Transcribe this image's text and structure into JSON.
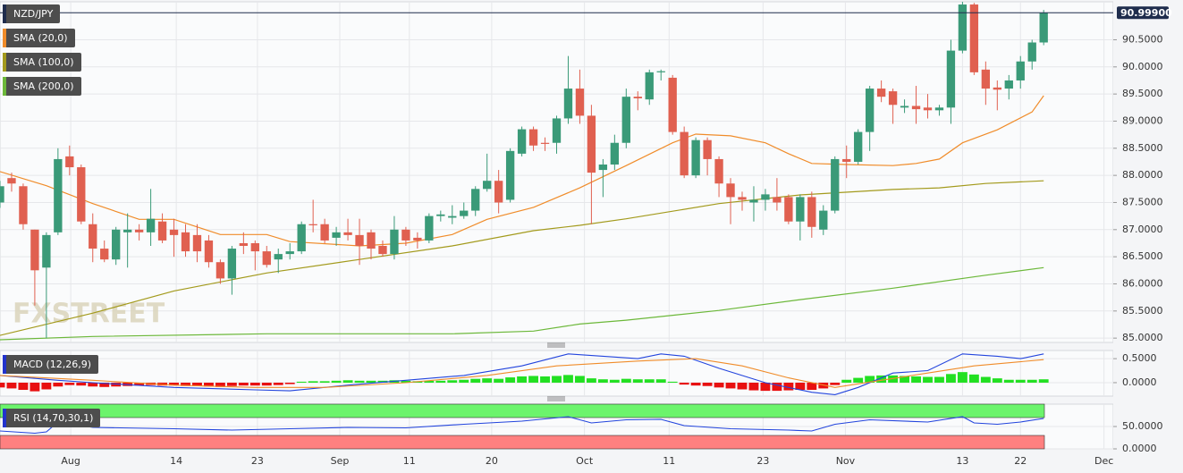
{
  "chart_data": [
    {
      "type": "candlestick",
      "title": "NZD/JPY",
      "title_color": "#1f2d4d",
      "up_color": "#3a9a78",
      "down_color": "#e06050",
      "open": [
        87.5,
        87.95,
        87.8,
        87.0,
        86.3,
        86.95,
        88.35,
        88.15,
        87.1,
        86.65,
        86.45,
        86.95,
        87.0,
        86.95,
        87.15,
        87.0,
        86.95,
        86.9,
        86.8,
        86.4,
        86.1,
        86.75,
        86.75,
        86.6,
        86.45,
        86.55,
        86.6,
        87.1,
        87.1,
        86.85,
        86.95,
        86.9,
        86.95,
        86.7,
        86.55,
        87.0,
        86.85,
        86.8,
        87.25,
        87.22,
        87.25,
        87.35,
        87.75,
        87.9,
        87.55,
        88.4,
        88.85,
        88.6,
        88.6,
        89.05,
        89.6,
        89.1,
        88.1,
        88.2,
        88.6,
        89.45,
        89.4,
        89.9,
        89.8,
        88.8,
        88.0,
        88.65,
        88.3,
        87.85,
        87.6,
        87.5,
        87.55,
        87.6,
        87.6,
        87.15,
        87.6,
        87.0,
        87.35,
        88.3,
        88.25,
        88.8,
        89.6,
        89.55,
        89.25,
        89.28,
        89.25,
        89.2,
        89.25,
        90.3,
        91.15,
        89.95,
        89.62,
        89.6,
        89.75,
        90.1,
        90.45
      ],
      "high": [
        87.9,
        88.05,
        87.85,
        87.0,
        86.95,
        88.5,
        88.55,
        88.2,
        87.3,
        86.8,
        87.05,
        87.3,
        87.1,
        87.75,
        87.3,
        87.2,
        87.1,
        87.1,
        86.9,
        86.45,
        86.7,
        86.95,
        86.8,
        86.7,
        86.65,
        86.75,
        87.15,
        87.55,
        87.2,
        87.05,
        87.2,
        87.2,
        87.0,
        86.8,
        87.25,
        87.05,
        86.95,
        87.3,
        87.35,
        87.45,
        87.5,
        87.8,
        88.4,
        88.1,
        88.5,
        88.9,
        88.9,
        88.7,
        89.1,
        90.2,
        89.95,
        89.3,
        88.3,
        88.75,
        89.6,
        89.55,
        89.95,
        89.95,
        89.85,
        88.9,
        88.7,
        88.7,
        88.35,
        87.95,
        87.7,
        87.8,
        87.75,
        87.95,
        87.65,
        87.65,
        87.7,
        87.45,
        88.35,
        88.55,
        88.85,
        89.65,
        89.75,
        89.6,
        89.4,
        89.65,
        89.5,
        89.3,
        90.5,
        91.2,
        91.18,
        90.1,
        89.75,
        89.85,
        90.2,
        90.5,
        91.05
      ],
      "low": [
        87.4,
        87.7,
        87.0,
        85.6,
        85.0,
        86.9,
        88.0,
        87.1,
        86.4,
        86.4,
        86.35,
        86.3,
        86.8,
        86.7,
        86.75,
        86.5,
        86.5,
        86.4,
        86.3,
        86.0,
        85.8,
        86.55,
        86.25,
        86.3,
        86.2,
        86.45,
        86.55,
        86.95,
        86.75,
        86.7,
        86.8,
        86.35,
        86.45,
        86.5,
        86.45,
        86.7,
        86.65,
        86.75,
        87.15,
        87.1,
        87.2,
        87.25,
        87.7,
        87.3,
        87.5,
        88.35,
        88.45,
        88.45,
        88.4,
        88.95,
        88.95,
        87.1,
        87.6,
        88.1,
        88.5,
        89.2,
        89.3,
        89.75,
        88.75,
        87.95,
        87.95,
        88.0,
        87.6,
        87.1,
        87.35,
        87.15,
        87.35,
        87.35,
        87.1,
        86.8,
        86.85,
        86.9,
        87.3,
        87.95,
        88.2,
        88.45,
        89.35,
        88.95,
        89.15,
        88.95,
        89.05,
        89.1,
        88.95,
        90.25,
        89.85,
        89.3,
        89.2,
        89.4,
        89.6,
        89.95,
        90.4
      ],
      "close": [
        87.8,
        87.85,
        87.1,
        86.25,
        86.9,
        88.3,
        88.15,
        87.15,
        86.65,
        86.45,
        87.0,
        87.0,
        86.95,
        87.2,
        86.8,
        86.9,
        86.6,
        86.6,
        86.4,
        86.1,
        86.65,
        86.7,
        86.6,
        86.35,
        86.55,
        86.6,
        87.1,
        87.08,
        86.8,
        86.95,
        86.9,
        86.7,
        86.65,
        86.55,
        87.0,
        86.8,
        86.8,
        87.25,
        87.28,
        87.25,
        87.35,
        87.75,
        87.9,
        87.5,
        88.45,
        88.85,
        88.55,
        88.58,
        89.05,
        89.6,
        89.1,
        88.05,
        88.2,
        88.6,
        89.45,
        89.42,
        89.9,
        89.92,
        88.8,
        88.0,
        88.65,
        88.3,
        87.85,
        87.6,
        87.55,
        87.55,
        87.65,
        87.5,
        87.15,
        87.6,
        87.05,
        87.35,
        88.3,
        88.25,
        88.8,
        89.6,
        89.45,
        89.3,
        89.28,
        89.22,
        89.2,
        89.25,
        90.3,
        91.15,
        89.9,
        89.6,
        89.58,
        89.75,
        90.1,
        90.45,
        90.999
      ],
      "overlays": [
        {
          "name": "SMA (20,0)",
          "color": "#f08c2a",
          "x": [
            0,
            4,
            8,
            12,
            15,
            19,
            23,
            25,
            31,
            35,
            39,
            42,
            46,
            50,
            54,
            58,
            60,
            63,
            66,
            68,
            70,
            73,
            77,
            79,
            81,
            83,
            86,
            89,
            90
          ],
          "values": [
            88.07,
            87.81,
            87.48,
            87.19,
            87.19,
            86.91,
            86.91,
            86.78,
            86.7,
            86.75,
            86.91,
            87.19,
            87.41,
            87.77,
            88.18,
            88.6,
            88.76,
            88.73,
            88.6,
            88.4,
            88.22,
            88.2,
            88.18,
            88.22,
            88.3,
            88.6,
            88.84,
            89.17,
            89.47
          ]
        },
        {
          "name": "SMA (100,0)",
          "color": "#a39a1c",
          "x": [
            0,
            8,
            15,
            23,
            31,
            39,
            46,
            50,
            54,
            62,
            69,
            77,
            81,
            85,
            90
          ],
          "values": [
            85.05,
            85.46,
            85.87,
            86.2,
            86.45,
            86.7,
            86.98,
            87.08,
            87.2,
            87.48,
            87.64,
            87.74,
            87.77,
            87.85,
            87.9
          ]
        },
        {
          "name": "SMA (200,0)",
          "color": "#6cb83a",
          "x": [
            0,
            8,
            23,
            39,
            46,
            50,
            54,
            62,
            69,
            77,
            85,
            90
          ],
          "values": [
            84.97,
            85.03,
            85.08,
            85.08,
            85.13,
            85.26,
            85.33,
            85.51,
            85.71,
            85.92,
            86.16,
            86.3
          ]
        }
      ],
      "last_price": {
        "value": 90.999,
        "label": "90.99900"
      },
      "watermark": "FXSTREET",
      "ylim": [
        84.92,
        91.2
      ],
      "yticks": [
        {
          "value": 85,
          "label": "85.0000"
        },
        {
          "value": 85.5,
          "label": "85.5000"
        },
        {
          "value": 86,
          "label": "86.0000"
        },
        {
          "value": 86.5,
          "label": "86.5000"
        },
        {
          "value": 87,
          "label": "87.0000"
        },
        {
          "value": 87.5,
          "label": "87.5000"
        },
        {
          "value": 88,
          "label": "88.0000"
        },
        {
          "value": 88.5,
          "label": "88.5000"
        },
        {
          "value": 89,
          "label": "89.0000"
        },
        {
          "value": 89.5,
          "label": "89.5000"
        },
        {
          "value": 90,
          "label": "90.0000"
        },
        {
          "value": 90.5,
          "label": "90.5000"
        }
      ],
      "xlim": [
        0,
        96
      ],
      "xticks": [
        {
          "value": 6.1,
          "label": "Aug"
        },
        {
          "value": 15.2,
          "label": "14"
        },
        {
          "value": 22.2,
          "label": "23"
        },
        {
          "value": 29.3,
          "label": "Sep"
        },
        {
          "value": 35.3,
          "label": "11"
        },
        {
          "value": 42.4,
          "label": "20"
        },
        {
          "value": 50.4,
          "label": "Oct"
        },
        {
          "value": 57.7,
          "label": "11"
        },
        {
          "value": 65.8,
          "label": "23"
        },
        {
          "value": 72.9,
          "label": "Nov"
        },
        {
          "value": 83.0,
          "label": "13"
        },
        {
          "value": 88.0,
          "label": "22"
        },
        {
          "value": 95.2,
          "label": "Dec"
        }
      ],
      "grid": true
    },
    {
      "type": "macd",
      "title": "MACD (12,26,9)",
      "title_color": "#2233cc",
      "histogram": {
        "positive_color": "#22e022",
        "negative_color": "#e81010",
        "values": [
          -0.1,
          -0.12,
          -0.15,
          -0.18,
          -0.14,
          -0.08,
          -0.05,
          -0.06,
          -0.08,
          -0.09,
          -0.08,
          -0.07,
          -0.06,
          -0.05,
          -0.06,
          -0.06,
          -0.07,
          -0.07,
          -0.08,
          -0.09,
          -0.07,
          -0.06,
          -0.06,
          -0.06,
          -0.05,
          -0.03,
          0.02,
          0.03,
          0.03,
          0.04,
          0.05,
          0.04,
          0.04,
          0.04,
          0.05,
          0.04,
          0.03,
          0.04,
          0.04,
          0.05,
          0.06,
          0.08,
          0.09,
          0.08,
          0.11,
          0.13,
          0.14,
          0.13,
          0.14,
          0.16,
          0.14,
          0.09,
          0.07,
          0.06,
          0.08,
          0.07,
          0.07,
          0.07,
          0.02,
          -0.04,
          -0.06,
          -0.07,
          -0.1,
          -0.12,
          -0.14,
          -0.16,
          -0.17,
          -0.17,
          -0.16,
          -0.15,
          -0.15,
          -0.12,
          -0.05,
          0.06,
          0.1,
          0.14,
          0.15,
          0.15,
          0.14,
          0.13,
          0.12,
          0.12,
          0.18,
          0.22,
          0.17,
          0.12,
          0.09,
          0.06,
          0.06,
          0.06,
          0.07
        ]
      },
      "series": [
        {
          "color": "#2244dd",
          "x": [
            0,
            5,
            8,
            15,
            22,
            25,
            30,
            35,
            40,
            45,
            49,
            52,
            55,
            57,
            59,
            62,
            66,
            70,
            72,
            74,
            77,
            80,
            83,
            86,
            88,
            90
          ],
          "values": [
            0.15,
            0.05,
            0.0,
            -0.1,
            -0.15,
            -0.17,
            -0.05,
            0.05,
            0.15,
            0.35,
            0.6,
            0.55,
            0.5,
            0.6,
            0.55,
            0.3,
            0.0,
            -0.2,
            -0.25,
            -0.1,
            0.2,
            0.25,
            0.6,
            0.55,
            0.5,
            0.6
          ]
        },
        {
          "color": "#f08c2a",
          "x": [
            0,
            8,
            15,
            22,
            28,
            35,
            42,
            48,
            55,
            60,
            64,
            68,
            72,
            76,
            80,
            84,
            90
          ],
          "values": [
            0.15,
            0.05,
            -0.05,
            -0.1,
            -0.1,
            0.0,
            0.15,
            0.35,
            0.45,
            0.5,
            0.35,
            0.1,
            -0.1,
            0.05,
            0.2,
            0.35,
            0.48
          ]
        }
      ],
      "ylim": [
        -0.28,
        0.67
      ],
      "yticks": [
        {
          "value": 0.5,
          "label": "0.5000"
        },
        {
          "value": 0,
          "label": "0.0000"
        }
      ]
    },
    {
      "type": "rsi",
      "title": "RSI (14,70,30,1)",
      "title_color": "#2233cc",
      "bands": [
        {
          "from": 70,
          "to": 100,
          "color": "#6cf46c"
        },
        {
          "from": 0,
          "to": 30,
          "color": "#ff8080"
        }
      ],
      "series": [
        {
          "color": "#2244dd",
          "x": [
            0,
            3,
            4,
            5,
            8,
            15,
            20,
            25,
            30,
            35,
            40,
            45,
            49,
            51,
            54,
            57,
            59,
            63,
            68,
            70,
            72,
            75,
            80,
            83,
            84,
            86,
            88,
            90
          ],
          "values": [
            40,
            35,
            38,
            60,
            48,
            45,
            42,
            45,
            48,
            47,
            55,
            62,
            72,
            58,
            65,
            66,
            52,
            45,
            42,
            40,
            55,
            65,
            60,
            72,
            58,
            55,
            60,
            68
          ]
        }
      ],
      "ylim": [
        0,
        100
      ],
      "yticks": [
        {
          "value": 50,
          "label": "50.0000"
        },
        {
          "value": 0,
          "label": "0.0000"
        }
      ]
    }
  ]
}
